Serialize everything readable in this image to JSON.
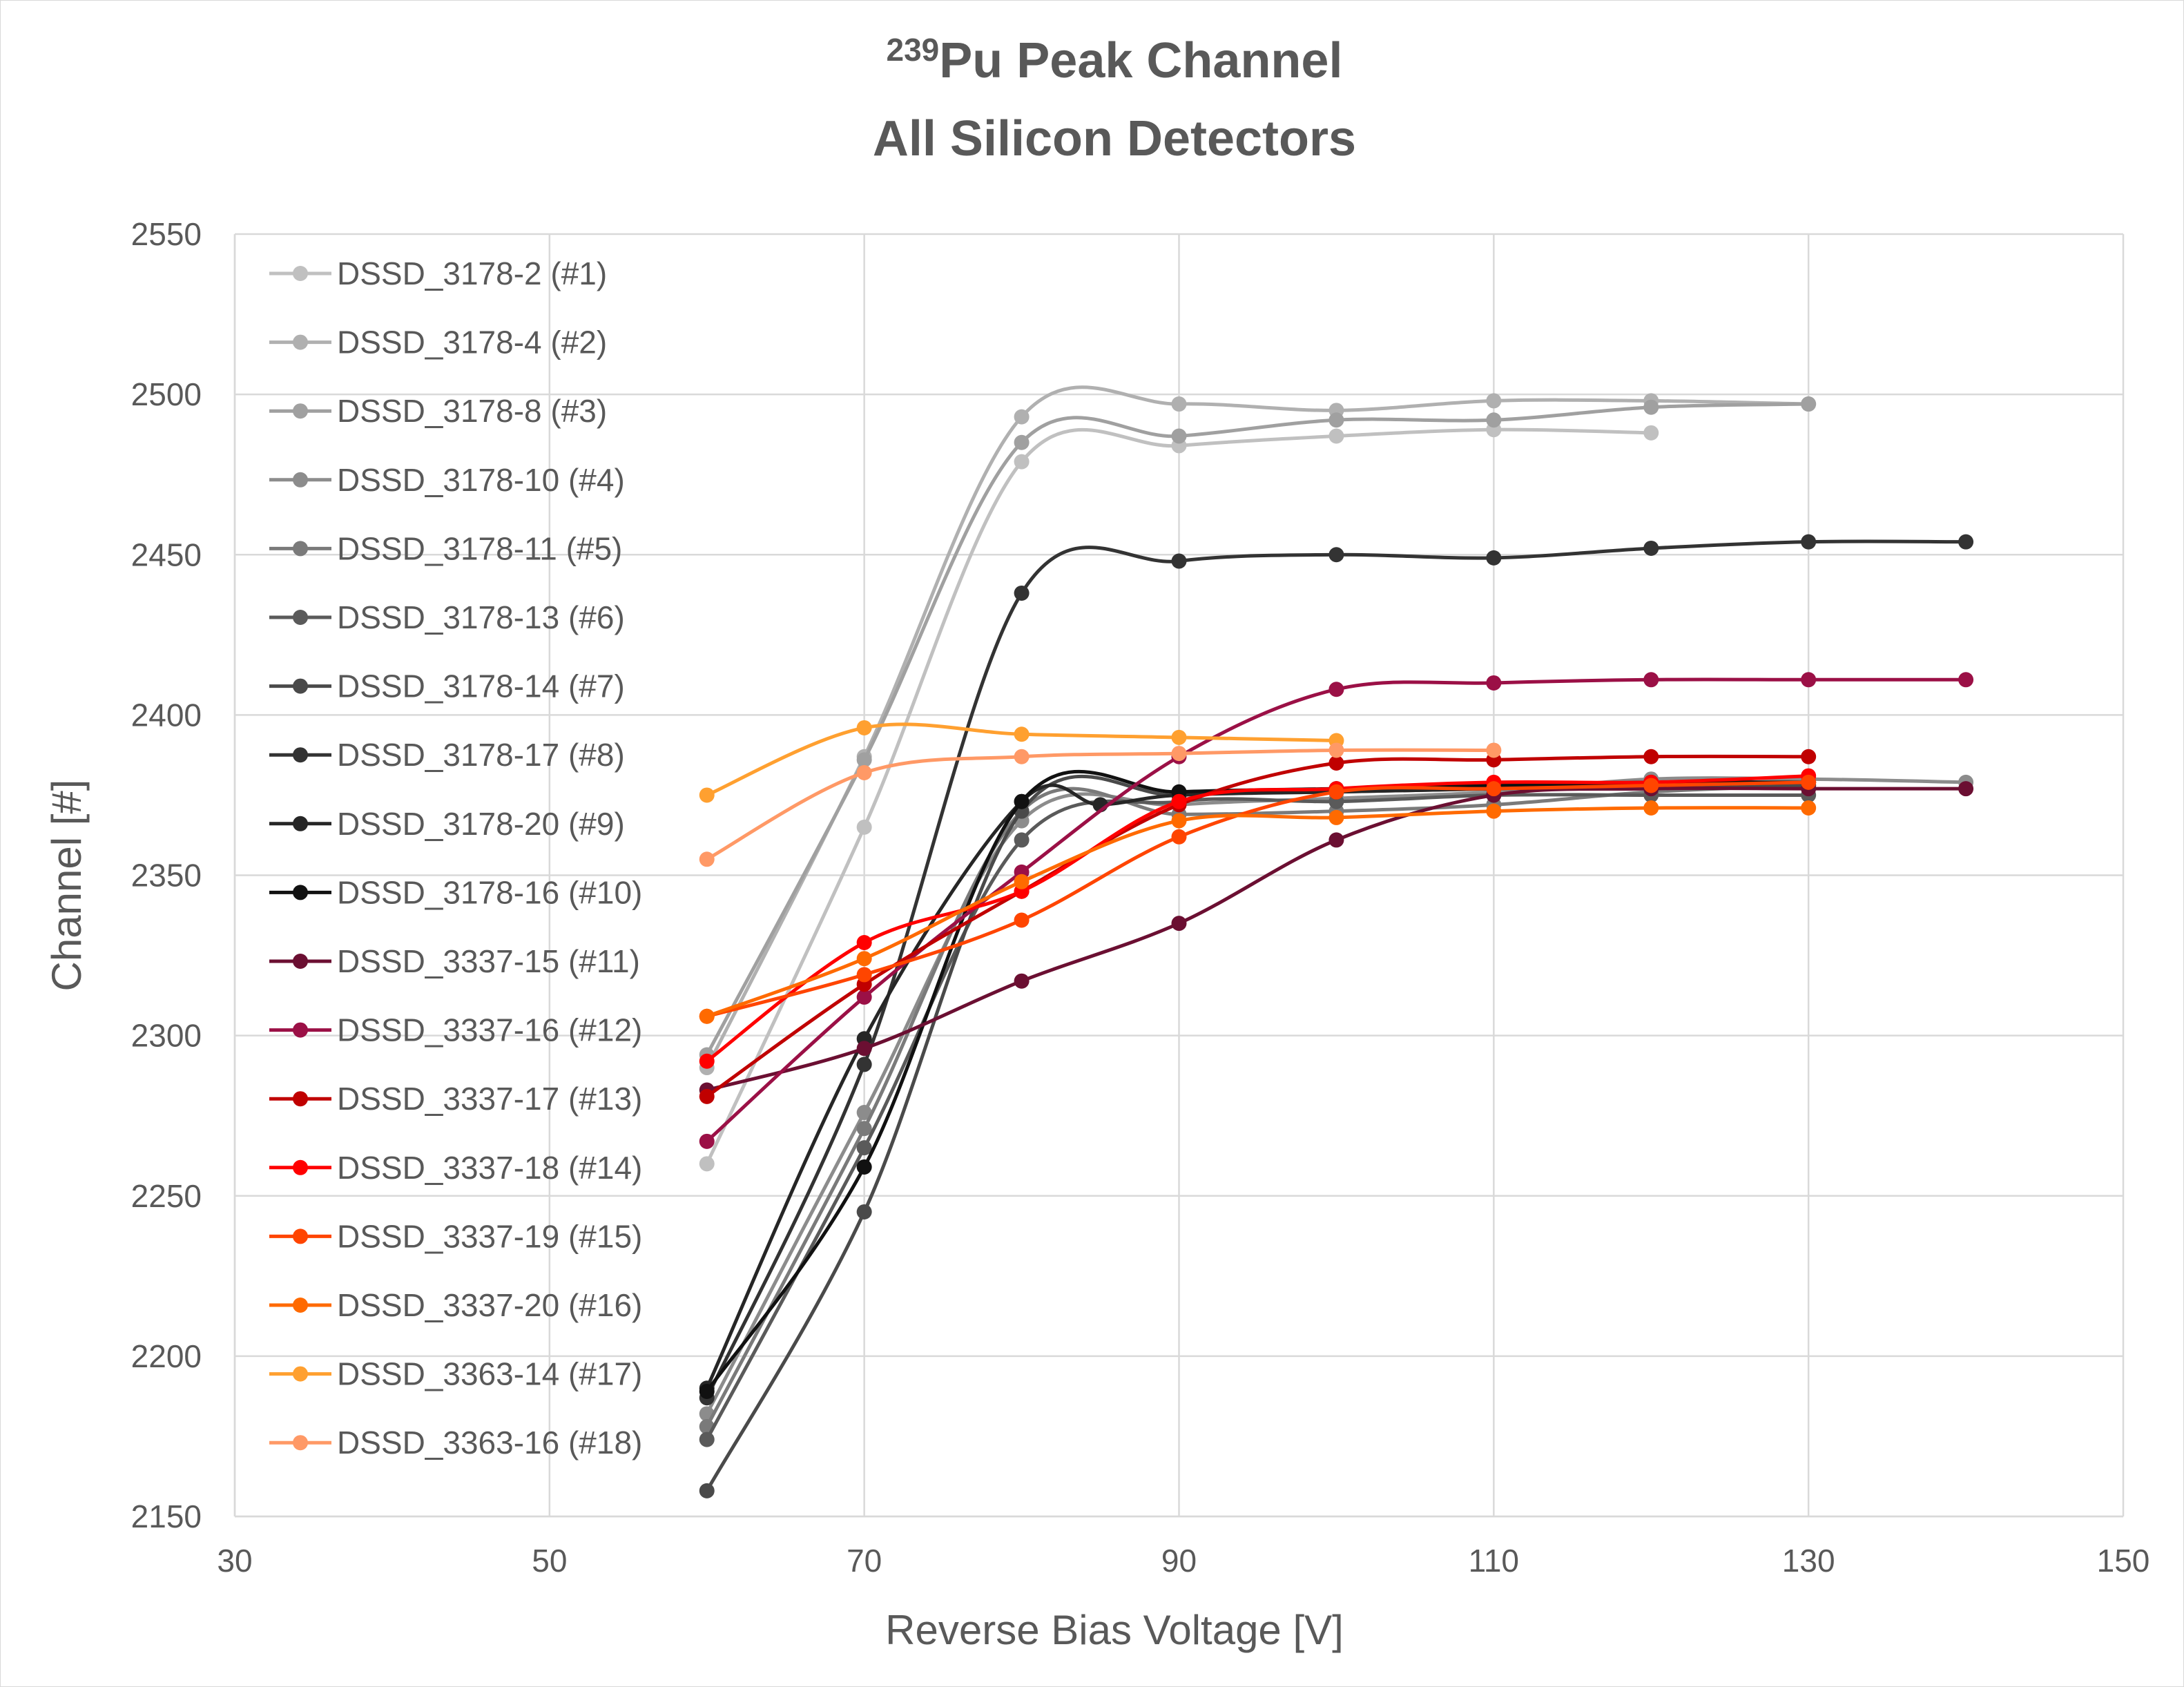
{
  "chart_data": {
    "type": "line",
    "title_prefix": "239",
    "title_line1": "Pu Peak Channel",
    "title_line2": "All Silicon Detectors",
    "xlabel": "Reverse Bias Voltage [V]",
    "ylabel": "Channel [#]",
    "xlim": [
      30,
      150
    ],
    "ylim": [
      2150,
      2550
    ],
    "xticks": [
      30,
      50,
      70,
      90,
      110,
      130,
      150
    ],
    "yticks": [
      2150,
      2200,
      2250,
      2300,
      2350,
      2400,
      2450,
      2500,
      2550
    ],
    "grid": true,
    "legend_position": "top-left inside",
    "smoothed": true,
    "series": [
      {
        "name": "DSSD_3178-2 (#1)",
        "color": "#c0c0c0",
        "x": [
          60,
          70,
          80,
          90,
          100,
          110,
          120
        ],
        "y": [
          2260,
          2365,
          2479,
          2484,
          2487,
          2489,
          2488
        ]
      },
      {
        "name": "DSSD_3178-4 (#2)",
        "color": "#b0b0b0",
        "x": [
          60,
          70,
          80,
          90,
          100,
          110,
          120,
          130
        ],
        "y": [
          2290,
          2387,
          2493,
          2497,
          2495,
          2498,
          2498,
          2497
        ]
      },
      {
        "name": "DSSD_3178-8 (#3)",
        "color": "#a0a0a0",
        "x": [
          60,
          70,
          80,
          90,
          100,
          110,
          120,
          130
        ],
        "y": [
          2294,
          2386,
          2485,
          2487,
          2492,
          2492,
          2496,
          2497
        ]
      },
      {
        "name": "DSSD_3178-10 (#4)",
        "color": "#8c8c8c",
        "x": [
          60,
          70,
          80,
          90,
          100,
          110,
          120,
          130,
          140
        ],
        "y": [
          2182,
          2276,
          2367,
          2372,
          2374,
          2376,
          2380,
          2380,
          2379
        ]
      },
      {
        "name": "DSSD_3178-11 (#5)",
        "color": "#7a7a7a",
        "x": [
          60,
          70,
          80,
          90,
          100,
          110,
          120,
          130
        ],
        "y": [
          2178,
          2271,
          2370,
          2369,
          2370,
          2372,
          2376,
          2378
        ]
      },
      {
        "name": "DSSD_3178-13 (#6)",
        "color": "#5a5a5a",
        "x": [
          60,
          70,
          80,
          90,
          100,
          110,
          120,
          130
        ],
        "y": [
          2174,
          2265,
          2361,
          2373,
          2373,
          2375,
          2375,
          2375
        ]
      },
      {
        "name": "DSSD_3178-14 (#7)",
        "color": "#4a4a4a",
        "x": [
          60,
          70,
          80,
          90,
          100,
          110,
          120,
          130
        ],
        "y": [
          2158,
          2245,
          2370,
          2375,
          2376,
          2377,
          2378,
          2378
        ]
      },
      {
        "name": "DSSD_3178-17 (#8)",
        "color": "#333333",
        "x": [
          60,
          70,
          80,
          90,
          100,
          110,
          120,
          130,
          140
        ],
        "y": [
          2187,
          2291,
          2438,
          2448,
          2450,
          2449,
          2452,
          2454,
          2454
        ]
      },
      {
        "name": "DSSD_3178-20 (#9)",
        "color": "#262626",
        "x": [
          60,
          70,
          80,
          85,
          90,
          100,
          110,
          120,
          130
        ],
        "y": [
          2190,
          2299,
          2373,
          2372,
          2375,
          2376,
          2377,
          2378,
          2379
        ]
      },
      {
        "name": "DSSD_3178-16 (#10)",
        "color": "#111111",
        "x": [
          60,
          70,
          80,
          90,
          100,
          110,
          120,
          130
        ],
        "y": [
          2189,
          2259,
          2373,
          2376,
          2377,
          2378,
          2379,
          2379
        ]
      },
      {
        "name": "DSSD_3337-15 (#11)",
        "color": "#6b0f32",
        "x": [
          60,
          70,
          80,
          90,
          100,
          110,
          120,
          130,
          140
        ],
        "y": [
          2283,
          2296,
          2317,
          2335,
          2361,
          2375,
          2377,
          2377,
          2377
        ]
      },
      {
        "name": "DSSD_3337-16 (#12)",
        "color": "#9b1046",
        "x": [
          60,
          70,
          80,
          90,
          100,
          110,
          120,
          130,
          140
        ],
        "y": [
          2267,
          2312,
          2351,
          2387,
          2408,
          2410,
          2411,
          2411,
          2411
        ]
      },
      {
        "name": "DSSD_3337-17 (#13)",
        "color": "#c00000",
        "x": [
          60,
          70,
          80,
          90,
          100,
          110,
          120,
          130
        ],
        "y": [
          2281,
          2316,
          2345,
          2372,
          2385,
          2386,
          2387,
          2387
        ]
      },
      {
        "name": "DSSD_3337-18 (#14)",
        "color": "#ff0000",
        "x": [
          60,
          70,
          80,
          90,
          100,
          110,
          120,
          130
        ],
        "y": [
          2292,
          2329,
          2345,
          2373,
          2377,
          2379,
          2379,
          2381
        ]
      },
      {
        "name": "DSSD_3337-19 (#15)",
        "color": "#ff4500",
        "x": [
          60,
          70,
          80,
          90,
          100,
          110,
          120,
          130
        ],
        "y": [
          2306,
          2319,
          2336,
          2362,
          2376,
          2377,
          2378,
          2379
        ]
      },
      {
        "name": "DSSD_3337-20 (#16)",
        "color": "#ff6a00",
        "x": [
          60,
          70,
          80,
          90,
          100,
          110,
          120,
          130
        ],
        "y": [
          2306,
          2324,
          2348,
          2367,
          2368,
          2370,
          2371,
          2371
        ]
      },
      {
        "name": "DSSD_3363-14 (#17)",
        "color": "#ffa030",
        "x": [
          60,
          70,
          80,
          90,
          100
        ],
        "y": [
          2375,
          2396,
          2394,
          2393,
          2392
        ]
      },
      {
        "name": "DSSD_3363-16 (#18)",
        "color": "#ff9966",
        "x": [
          60,
          70,
          80,
          90,
          100,
          110
        ],
        "y": [
          2355,
          2382,
          2387,
          2388,
          2389,
          2389
        ]
      }
    ]
  }
}
